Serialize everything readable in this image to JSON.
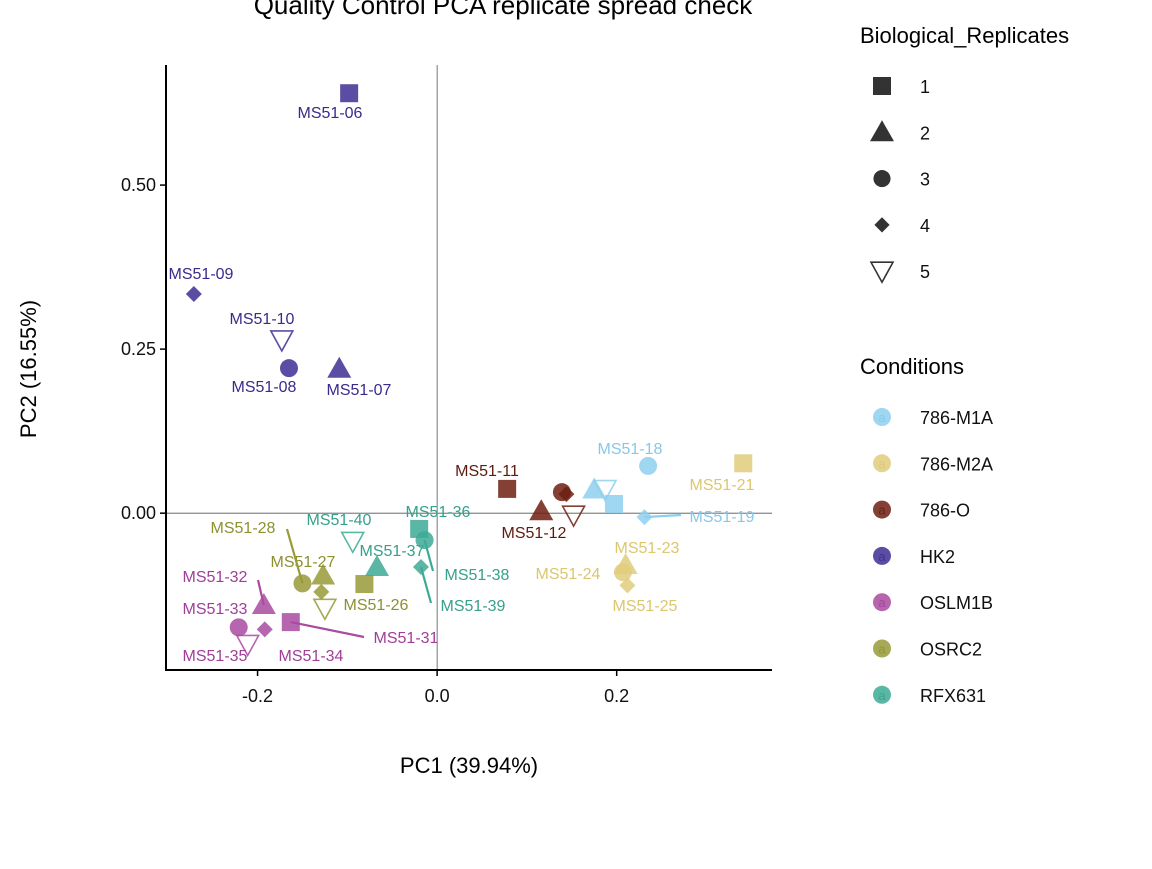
{
  "chart_data": {
    "type": "scatter",
    "title": "Quality Control PCA replicate spread check",
    "xlabel": "PC1 (39.94%)",
    "ylabel": "PC2 (16.55%)",
    "xlim": [
      -0.302,
      0.373
    ],
    "ylim": [
      -0.239,
      0.683
    ],
    "xticks": [
      -0.2,
      0.0,
      0.2
    ],
    "xtick_labels": [
      "-0.2",
      "0.0",
      "0.2"
    ],
    "yticks": [
      0.0,
      0.25,
      0.5
    ],
    "ytick_labels": [
      "0.00",
      "0.25",
      "0.50"
    ],
    "grid": false,
    "zero_lines": true,
    "legend_position": "right",
    "shape_legend": {
      "title": "Biological_Replicates",
      "items": [
        {
          "label": "1",
          "shape": "square"
        },
        {
          "label": "2",
          "shape": "triangle"
        },
        {
          "label": "3",
          "shape": "circle"
        },
        {
          "label": "4",
          "shape": "diamond"
        },
        {
          "label": "5",
          "shape": "triangle-down-open"
        }
      ]
    },
    "color_legend": {
      "title": "Conditions",
      "key_glyph": "a",
      "items": [
        {
          "label": "786-M1A",
          "color": "#8ECFEF",
          "text_color": "#86C8EA"
        },
        {
          "label": "786-M2A",
          "color": "#E1CC7C",
          "text_color": "#DCC66E"
        },
        {
          "label": "786-O",
          "color": "#6E1F12",
          "text_color": "#5E1A0C"
        },
        {
          "label": "HK2",
          "color": "#3F2E94",
          "text_color": "#3A2A8C"
        },
        {
          "label": "OSLM1B",
          "color": "#A94BA1",
          "text_color": "#A03E98"
        },
        {
          "label": "OSRC2",
          "color": "#989A3A",
          "text_color": "#8E9030"
        },
        {
          "label": "RFX631",
          "color": "#3DAA95",
          "text_color": "#36A08C"
        }
      ]
    },
    "points": [
      {
        "label": "MS51-06",
        "condition": "HK2",
        "replicate": "1",
        "pc1": -0.098,
        "pc2": 0.64
      },
      {
        "label": "MS51-07",
        "condition": "HK2",
        "replicate": "2",
        "pc1": -0.109,
        "pc2": 0.22
      },
      {
        "label": "MS51-08",
        "condition": "HK2",
        "replicate": "3",
        "pc1": -0.165,
        "pc2": 0.221
      },
      {
        "label": "MS51-09",
        "condition": "HK2",
        "replicate": "4",
        "pc1": -0.271,
        "pc2": 0.334
      },
      {
        "label": "MS51-10",
        "condition": "HK2",
        "replicate": "5",
        "pc1": -0.173,
        "pc2": 0.264
      },
      {
        "label": "MS51-11",
        "condition": "786-O",
        "replicate": "1",
        "pc1": 0.078,
        "pc2": 0.037
      },
      {
        "label": "MS51-12",
        "condition": "786-O",
        "replicate": "2",
        "pc1": 0.116,
        "pc2": 0.003
      },
      {
        "label": "",
        "condition": "786-O",
        "replicate": "3",
        "pc1": 0.139,
        "pc2": 0.032
      },
      {
        "label": "",
        "condition": "786-O",
        "replicate": "4",
        "pc1": 0.144,
        "pc2": 0.029
      },
      {
        "label": "",
        "condition": "786-O",
        "replicate": "5",
        "pc1": 0.152,
        "pc2": -0.003
      },
      {
        "label": "",
        "condition": "786-M1A",
        "replicate": "1",
        "pc1": 0.197,
        "pc2": 0.014
      },
      {
        "label": "",
        "condition": "786-M1A",
        "replicate": "2",
        "pc1": 0.175,
        "pc2": 0.036
      },
      {
        "label": "MS51-18",
        "condition": "786-M1A",
        "replicate": "3",
        "pc1": 0.235,
        "pc2": 0.072
      },
      {
        "label": "MS51-19",
        "condition": "786-M1A",
        "replicate": "4",
        "pc1": 0.231,
        "pc2": -0.006
      },
      {
        "label": "",
        "condition": "786-M1A",
        "replicate": "5",
        "pc1": 0.187,
        "pc2": 0.036
      },
      {
        "label": "MS51-21",
        "condition": "786-M2A",
        "replicate": "1",
        "pc1": 0.341,
        "pc2": 0.076
      },
      {
        "label": "MS51-23",
        "condition": "786-M2A",
        "replicate": "2",
        "pc1": 0.21,
        "pc2": -0.079
      },
      {
        "label": "MS51-24",
        "condition": "786-M2A",
        "replicate": "3",
        "pc1": 0.207,
        "pc2": -0.09
      },
      {
        "label": "MS51-25",
        "condition": "786-M2A",
        "replicate": "4",
        "pc1": 0.212,
        "pc2": -0.11
      },
      {
        "label": "MS51-26",
        "condition": "OSRC2",
        "replicate": "1",
        "pc1": -0.081,
        "pc2": -0.108
      },
      {
        "label": "MS51-27",
        "condition": "OSRC2",
        "replicate": "2",
        "pc1": -0.127,
        "pc2": -0.095
      },
      {
        "label": "MS51-28",
        "condition": "OSRC2",
        "replicate": "3",
        "pc1": -0.15,
        "pc2": -0.107
      },
      {
        "label": "",
        "condition": "OSRC2",
        "replicate": "4",
        "pc1": -0.129,
        "pc2": -0.12
      },
      {
        "label": "",
        "condition": "OSRC2",
        "replicate": "5",
        "pc1": -0.125,
        "pc2": -0.145
      },
      {
        "label": "MS51-31",
        "condition": "OSLM1B",
        "replicate": "1",
        "pc1": -0.163,
        "pc2": -0.166
      },
      {
        "label": "MS51-32",
        "condition": "OSLM1B",
        "replicate": "2",
        "pc1": -0.193,
        "pc2": -0.14
      },
      {
        "label": "MS51-33",
        "condition": "OSLM1B",
        "replicate": "3",
        "pc1": -0.221,
        "pc2": -0.174
      },
      {
        "label": "MS51-34",
        "condition": "OSLM1B",
        "replicate": "4",
        "pc1": -0.192,
        "pc2": -0.177
      },
      {
        "label": "MS51-35",
        "condition": "OSLM1B",
        "replicate": "5",
        "pc1": -0.211,
        "pc2": -0.2
      },
      {
        "label": "MS51-36",
        "condition": "RFX631",
        "replicate": "1",
        "pc1": -0.02,
        "pc2": -0.024
      },
      {
        "label": "MS51-37",
        "condition": "RFX631",
        "replicate": "2",
        "pc1": -0.067,
        "pc2": -0.082
      },
      {
        "label": "MS51-38",
        "condition": "RFX631",
        "replicate": "3",
        "pc1": -0.014,
        "pc2": -0.041
      },
      {
        "label": "MS51-39",
        "condition": "RFX631",
        "replicate": "4",
        "pc1": -0.018,
        "pc2": -0.082
      },
      {
        "label": "MS51-40",
        "condition": "RFX631",
        "replicate": "5",
        "pc1": -0.094,
        "pc2": -0.043
      }
    ]
  }
}
